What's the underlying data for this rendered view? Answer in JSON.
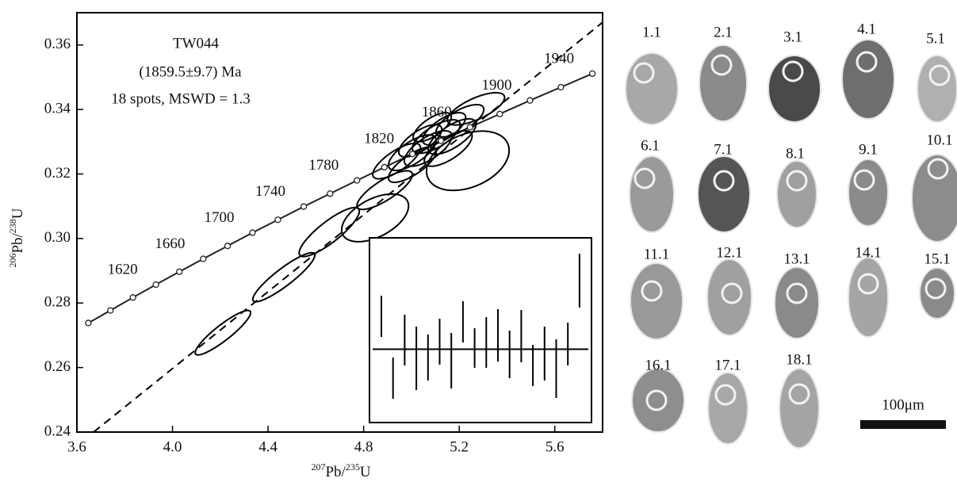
{
  "chart_data": {
    "type": "concordia",
    "title": "TW044",
    "subtitle": "(1859.5±9.7) Ma",
    "annotation": "18 spots, MSWD = 1.3",
    "x_label": [
      "207",
      "Pb/",
      "235",
      "U"
    ],
    "y_label": [
      "206",
      "Pb/",
      "238",
      "U"
    ],
    "xlim": [
      3.6,
      5.8
    ],
    "ylim": [
      0.24,
      0.37
    ],
    "xticks": [
      3.6,
      {
        "value": 4,
        "label": "4.0"
      },
      4.4,
      4.8,
      5.2,
      5.6
    ],
    "yticks": [
      0.24,
      0.26,
      0.28,
      {
        "value": 0.3,
        "label": "0.30"
      },
      0.32,
      0.34,
      0.36
    ],
    "concordia": {
      "ages": [
        1560,
        1580,
        1600,
        1620,
        1640,
        1660,
        1680,
        1700,
        1720,
        1740,
        1760,
        1780,
        1800,
        1820,
        1840,
        1860,
        1880,
        1900,
        1920,
        1940
      ],
      "x": [
        3.6477,
        3.7401,
        3.8344,
        3.9306,
        4.0287,
        4.1287,
        4.2307,
        4.3348,
        4.4409,
        4.5491,
        4.6595,
        4.7721,
        4.8869,
        5.004,
        5.1234,
        5.2452,
        5.3695,
        5.4962,
        5.6254,
        5.7572
      ],
      "y": [
        0.2738,
        0.2777,
        0.2817,
        0.2857,
        0.2897,
        0.2937,
        0.2977,
        0.3018,
        0.3058,
        0.3099,
        0.3139,
        0.318,
        0.3221,
        0.3262,
        0.3303,
        0.3345,
        0.3386,
        0.3428,
        0.3469,
        0.3511
      ],
      "labeled_ages": [
        1620,
        1660,
        1700,
        1740,
        1780,
        1820,
        1860,
        1900,
        1940
      ]
    },
    "discordia": {
      "x": [
        3.67,
        5.8
      ],
      "y": [
        0.24,
        0.367
      ]
    },
    "ellipses": [
      {
        "x": 4.211,
        "y": 0.2708,
        "x_err": 0.116,
        "y_err": 0.0069,
        "rho": 0.9
      },
      {
        "x": 4.466,
        "y": 0.288,
        "x_err": 0.13,
        "y_err": 0.0076,
        "rho": 0.9
      },
      {
        "x": 4.656,
        "y": 0.302,
        "x_err": 0.126,
        "y_err": 0.0076,
        "rho": 0.85
      },
      {
        "x": 4.848,
        "y": 0.3064,
        "x_err": 0.14,
        "y_err": 0.0074,
        "rho": 0.5
      },
      {
        "x": 4.888,
        "y": 0.315,
        "x_err": 0.116,
        "y_err": 0.006,
        "rho": 0.8
      },
      {
        "x": 4.938,
        "y": 0.324,
        "x_err": 0.1,
        "y_err": 0.0055,
        "rho": 0.75
      },
      {
        "x": 5.004,
        "y": 0.3266,
        "x_err": 0.1,
        "y_err": 0.0055,
        "rho": 0.7
      },
      {
        "x": 5.037,
        "y": 0.3303,
        "x_err": 0.09,
        "y_err": 0.005,
        "rho": 0.7
      },
      {
        "x": 5.07,
        "y": 0.3279,
        "x_err": 0.1,
        "y_err": 0.0055,
        "rho": 0.7
      },
      {
        "x": 5.104,
        "y": 0.3316,
        "x_err": 0.1,
        "y_err": 0.0052,
        "rho": 0.7
      },
      {
        "x": 5.137,
        "y": 0.334,
        "x_err": 0.09,
        "y_err": 0.005,
        "rho": 0.7
      },
      {
        "x": 5.087,
        "y": 0.3345,
        "x_err": 0.08,
        "y_err": 0.0045,
        "rho": 0.7
      },
      {
        "x": 5.17,
        "y": 0.3316,
        "x_err": 0.1,
        "y_err": 0.0055,
        "rho": 0.7
      },
      {
        "x": 5.203,
        "y": 0.3365,
        "x_err": 0.1,
        "y_err": 0.005,
        "rho": 0.7
      },
      {
        "x": 5.154,
        "y": 0.3279,
        "x_err": 0.1,
        "y_err": 0.0055,
        "rho": 0.7
      },
      {
        "x": 5.004,
        "y": 0.3229,
        "x_err": 0.1,
        "y_err": 0.0055,
        "rho": 0.75
      },
      {
        "x": 5.27,
        "y": 0.3402,
        "x_err": 0.12,
        "y_err": 0.005,
        "rho": 0.7
      },
      {
        "x": 5.236,
        "y": 0.3241,
        "x_err": 0.173,
        "y_err": 0.0092,
        "rho": 0.35
      }
    ],
    "inset": {
      "ylim": [
        1767,
        2000
      ],
      "mean": 1859.5,
      "values": [
        1901,
        1823,
        1871,
        1848,
        1849,
        1869,
        1845,
        1894,
        1861,
        1868,
        1877,
        1853,
        1876,
        1839,
        1854,
        1835,
        1866,
        1946
      ],
      "errors": [
        26,
        26,
        32,
        40,
        29,
        29,
        35,
        26,
        25,
        32,
        33,
        30,
        33,
        26,
        34,
        37,
        27,
        34
      ]
    }
  },
  "spots": [
    "1.1",
    "2.1",
    "3.1",
    "4.1",
    "5.1",
    "6.1",
    "7.1",
    "8.1",
    "9.1",
    "10.1",
    "11.1",
    "12.1",
    "13.1",
    "14.1",
    "15.1",
    "16.1",
    "17.1",
    "18.1"
  ],
  "scale_bar": "100μm"
}
